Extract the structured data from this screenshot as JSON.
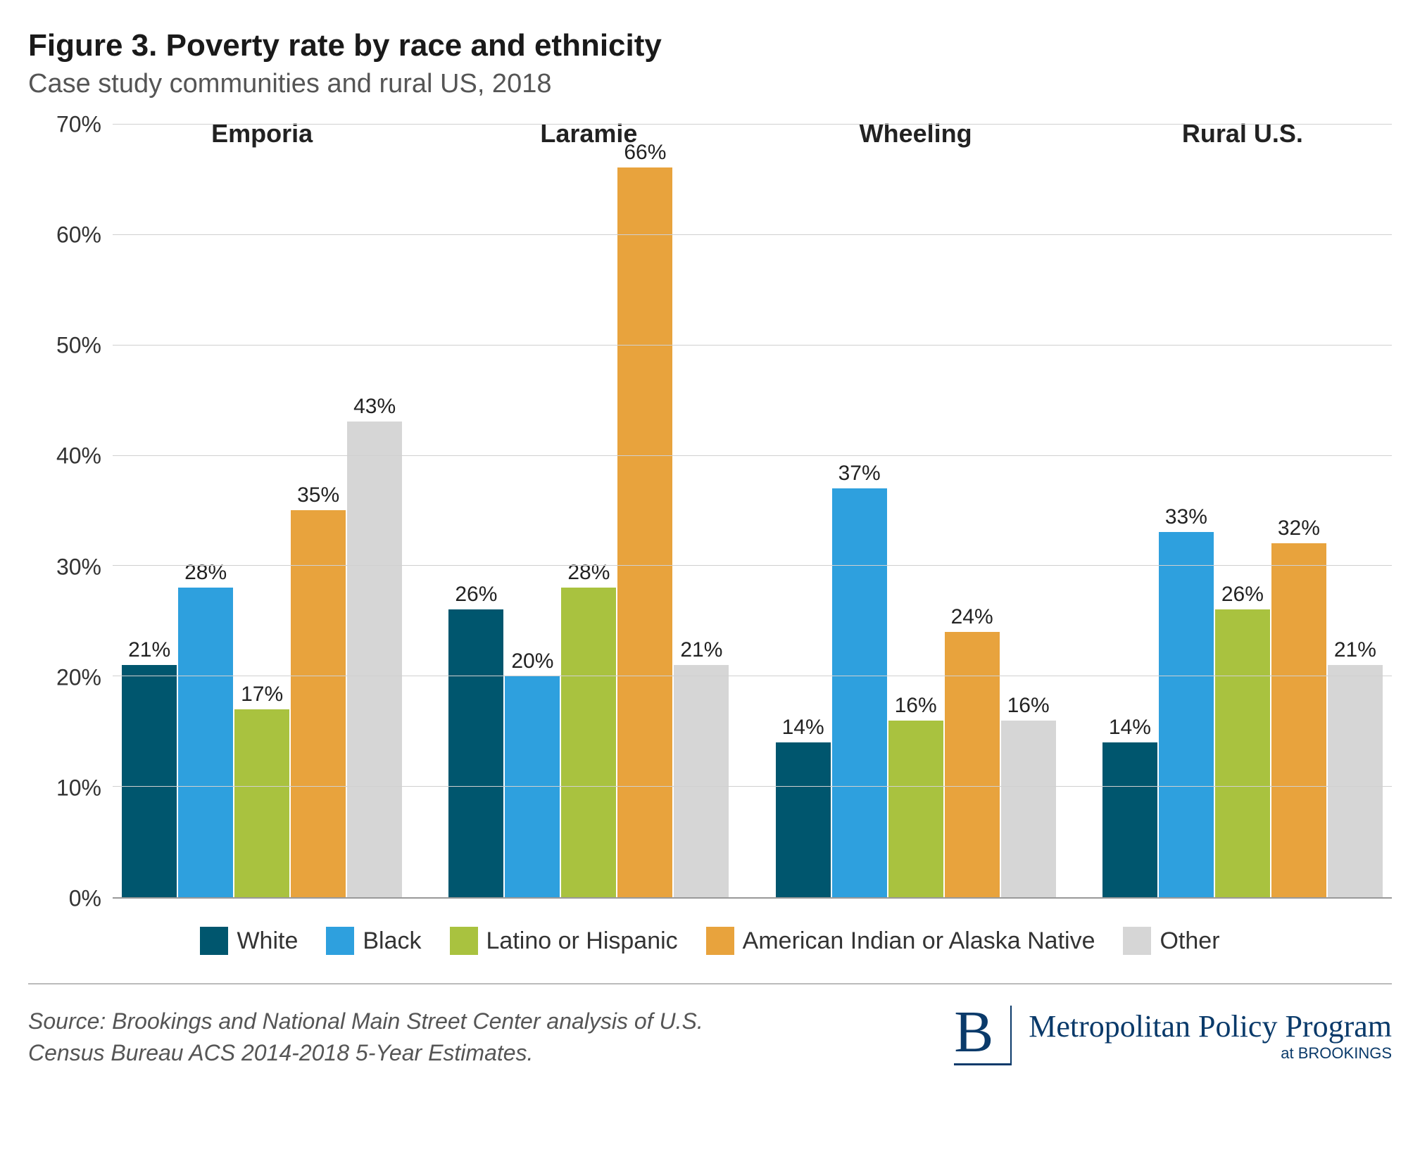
{
  "title": "Figure 3. Poverty rate by race and ethnicity",
  "subtitle": "Case study communities and rural US, 2018",
  "chart": {
    "type": "bar",
    "ylim": [
      0,
      70
    ],
    "ytick_step": 10,
    "y_format": "percent",
    "grid_color": "#d0d0d0",
    "background_color": "#ffffff",
    "title_fontsize": 44,
    "subtitle_fontsize": 38,
    "axis_fontsize": 32,
    "label_fontsize": 30,
    "group_label_fontsize": 36,
    "series": [
      {
        "name": "White",
        "color": "#00566e"
      },
      {
        "name": "Black",
        "color": "#2ea0de"
      },
      {
        "name": "Latino or Hispanic",
        "color": "#a9c23f"
      },
      {
        "name": "American Indian or Alaska Native",
        "color": "#e8a33d"
      },
      {
        "name": "Other",
        "color": "#d6d6d6"
      }
    ],
    "groups": [
      {
        "label": "Emporia",
        "values": [
          21,
          28,
          17,
          35,
          43
        ]
      },
      {
        "label": "Laramie",
        "values": [
          26,
          20,
          28,
          66,
          21
        ]
      },
      {
        "label": "Wheeling",
        "values": [
          14,
          37,
          16,
          24,
          16
        ]
      },
      {
        "label": "Rural U.S.",
        "values": [
          14,
          33,
          26,
          32,
          21
        ]
      }
    ]
  },
  "source": "Source: Brookings and National Main Street Center analysis of U.S. Census Bureau ACS 2014-2018 5-Year Estimates.",
  "brand": {
    "logo_letter": "B",
    "main": "Metropolitan Policy Program",
    "sub": "at BROOKINGS",
    "color": "#0a3a6a"
  }
}
